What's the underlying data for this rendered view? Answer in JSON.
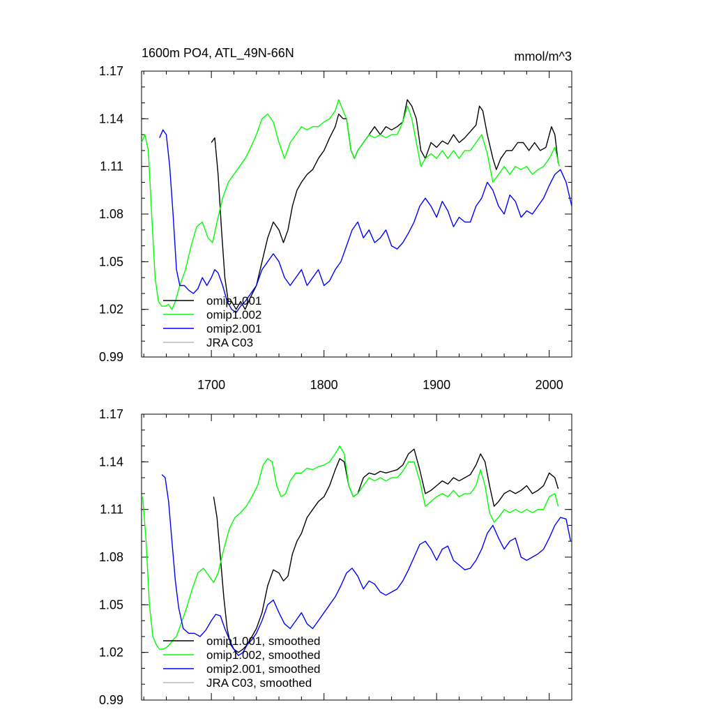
{
  "chart_data": [
    {
      "type": "line",
      "title": "1600m PO4, ATL_49N-66N",
      "units": "mmol/m^3",
      "xlim": [
        1638,
        2020
      ],
      "ylim": [
        0.99,
        1.17
      ],
      "yticks": [
        "1.17",
        "1.14",
        "1.11",
        "1.08",
        "1.05",
        "1.02",
        "0.99"
      ],
      "xticks": [
        "1700",
        "1800",
        "1900",
        "2000"
      ],
      "legend_position": "bottom-left",
      "series": [
        {
          "name": "omip1.001",
          "color": "#000000",
          "x": [
            1700,
            1703,
            1706,
            1709,
            1712,
            1715,
            1718,
            1722,
            1726,
            1730,
            1735,
            1740,
            1745,
            1750,
            1755,
            1760,
            1764,
            1768,
            1772,
            1776,
            1780,
            1785,
            1790,
            1795,
            1800,
            1805,
            1810,
            1813,
            1817,
            1820,
            1824,
            1827,
            1830,
            1835,
            1840,
            1845,
            1850,
            1855,
            1860,
            1865,
            1870,
            1874,
            1878,
            1882,
            1886,
            1890,
            1895,
            1900,
            1905,
            1910,
            1915,
            1920,
            1925,
            1930,
            1935,
            1938,
            1941,
            1945,
            1950,
            1953,
            1957,
            1962,
            1967,
            1972,
            1977,
            1982,
            1987,
            1992,
            1997,
            2002,
            2005,
            2008
          ],
          "y": [
            1.125,
            1.128,
            1.105,
            1.07,
            1.04,
            1.025,
            1.025,
            1.02,
            1.025,
            1.02,
            1.028,
            1.035,
            1.05,
            1.065,
            1.075,
            1.07,
            1.062,
            1.07,
            1.085,
            1.095,
            1.1,
            1.105,
            1.108,
            1.115,
            1.12,
            1.128,
            1.135,
            1.143,
            1.14,
            1.14,
            1.12,
            1.115,
            1.12,
            1.125,
            1.13,
            1.135,
            1.13,
            1.135,
            1.133,
            1.135,
            1.138,
            1.152,
            1.148,
            1.14,
            1.12,
            1.115,
            1.125,
            1.122,
            1.126,
            1.124,
            1.13,
            1.125,
            1.128,
            1.132,
            1.136,
            1.148,
            1.145,
            1.13,
            1.115,
            1.108,
            1.115,
            1.12,
            1.12,
            1.125,
            1.125,
            1.12,
            1.125,
            1.12,
            1.122,
            1.135,
            1.13,
            1.112
          ]
        },
        {
          "name": "omip1.002",
          "color": "#00ff00",
          "x": [
            1638,
            1641,
            1644,
            1647,
            1650,
            1653,
            1656,
            1659,
            1662,
            1665,
            1668,
            1672,
            1677,
            1682,
            1687,
            1692,
            1697,
            1701,
            1705,
            1710,
            1715,
            1720,
            1725,
            1730,
            1735,
            1740,
            1745,
            1750,
            1755,
            1760,
            1765,
            1770,
            1775,
            1780,
            1785,
            1790,
            1795,
            1800,
            1805,
            1810,
            1813,
            1817,
            1820,
            1824,
            1827,
            1830,
            1835,
            1840,
            1845,
            1850,
            1855,
            1860,
            1865,
            1870,
            1874,
            1878,
            1882,
            1886,
            1890,
            1895,
            1900,
            1905,
            1910,
            1915,
            1920,
            1925,
            1930,
            1935,
            1940,
            1945,
            1950,
            1955,
            1960,
            1965,
            1970,
            1975,
            1980,
            1985,
            1990,
            1995,
            2000,
            2005,
            2009
          ],
          "y": [
            1.125,
            1.13,
            1.12,
            1.08,
            1.04,
            1.025,
            1.022,
            1.022,
            1.023,
            1.02,
            1.025,
            1.035,
            1.045,
            1.06,
            1.072,
            1.075,
            1.065,
            1.062,
            1.075,
            1.09,
            1.1,
            1.105,
            1.11,
            1.115,
            1.122,
            1.13,
            1.14,
            1.143,
            1.138,
            1.125,
            1.115,
            1.125,
            1.13,
            1.135,
            1.133,
            1.135,
            1.135,
            1.138,
            1.14,
            1.145,
            1.152,
            1.145,
            1.14,
            1.12,
            1.115,
            1.12,
            1.125,
            1.13,
            1.128,
            1.13,
            1.128,
            1.13,
            1.13,
            1.138,
            1.148,
            1.14,
            1.125,
            1.11,
            1.115,
            1.118,
            1.115,
            1.12,
            1.115,
            1.12,
            1.115,
            1.12,
            1.12,
            1.125,
            1.13,
            1.118,
            1.1,
            1.105,
            1.11,
            1.105,
            1.11,
            1.108,
            1.11,
            1.105,
            1.108,
            1.11,
            1.115,
            1.122,
            1.11
          ]
        },
        {
          "name": "omip2.001",
          "color": "#0000ff",
          "x": [
            1654,
            1657,
            1660,
            1663,
            1666,
            1669,
            1672,
            1676,
            1680,
            1684,
            1688,
            1692,
            1696,
            1700,
            1703,
            1706,
            1710,
            1714,
            1718,
            1722,
            1726,
            1730,
            1735,
            1740,
            1745,
            1750,
            1755,
            1760,
            1765,
            1770,
            1775,
            1780,
            1785,
            1790,
            1795,
            1800,
            1805,
            1810,
            1815,
            1820,
            1825,
            1830,
            1835,
            1840,
            1845,
            1850,
            1855,
            1860,
            1865,
            1870,
            1875,
            1880,
            1885,
            1890,
            1895,
            1900,
            1905,
            1910,
            1915,
            1920,
            1925,
            1930,
            1935,
            1940,
            1945,
            1950,
            1955,
            1960,
            1965,
            1970,
            1975,
            1980,
            1985,
            1990,
            1995,
            2000,
            2005,
            2010,
            2015,
            2020
          ],
          "y": [
            1.128,
            1.133,
            1.13,
            1.11,
            1.08,
            1.045,
            1.035,
            1.035,
            1.032,
            1.03,
            1.033,
            1.04,
            1.035,
            1.04,
            1.045,
            1.043,
            1.035,
            1.025,
            1.02,
            1.018,
            1.022,
            1.025,
            1.03,
            1.035,
            1.045,
            1.05,
            1.055,
            1.05,
            1.04,
            1.035,
            1.04,
            1.045,
            1.035,
            1.04,
            1.045,
            1.035,
            1.038,
            1.045,
            1.05,
            1.06,
            1.07,
            1.075,
            1.065,
            1.07,
            1.062,
            1.065,
            1.07,
            1.06,
            1.058,
            1.062,
            1.068,
            1.075,
            1.085,
            1.09,
            1.085,
            1.078,
            1.088,
            1.082,
            1.072,
            1.078,
            1.075,
            1.075,
            1.085,
            1.09,
            1.1,
            1.095,
            1.085,
            1.08,
            1.092,
            1.088,
            1.078,
            1.082,
            1.08,
            1.085,
            1.09,
            1.098,
            1.105,
            1.108,
            1.1,
            1.085
          ]
        },
        {
          "name": "JRA C03",
          "color": "#bbbbbb",
          "x": [],
          "y": []
        }
      ]
    },
    {
      "type": "line",
      "title": "",
      "units": "",
      "xlim": [
        1638,
        2020
      ],
      "ylim": [
        0.99,
        1.17
      ],
      "yticks": [
        "1.17",
        "1.14",
        "1.11",
        "1.08",
        "1.05",
        "1.02",
        "0.99"
      ],
      "xticks": [],
      "legend_position": "bottom-left",
      "series": [
        {
          "name": "omip1.001, smoothed",
          "color": "#000000",
          "x": [
            1702,
            1705,
            1708,
            1711,
            1714,
            1717,
            1720,
            1724,
            1728,
            1732,
            1736,
            1740,
            1745,
            1750,
            1755,
            1760,
            1764,
            1768,
            1772,
            1776,
            1780,
            1785,
            1790,
            1795,
            1800,
            1805,
            1810,
            1814,
            1818,
            1822,
            1826,
            1830,
            1835,
            1840,
            1845,
            1850,
            1855,
            1860,
            1865,
            1870,
            1875,
            1880,
            1885,
            1890,
            1895,
            1900,
            1905,
            1910,
            1915,
            1920,
            1925,
            1930,
            1935,
            1939,
            1943,
            1947,
            1951,
            1955,
            1960,
            1965,
            1970,
            1975,
            1980,
            1985,
            1990,
            1995,
            2000,
            2005,
            2008
          ],
          "y": [
            1.118,
            1.105,
            1.08,
            1.055,
            1.035,
            1.025,
            1.022,
            1.02,
            1.022,
            1.025,
            1.03,
            1.035,
            1.045,
            1.062,
            1.072,
            1.07,
            1.065,
            1.068,
            1.082,
            1.09,
            1.095,
            1.105,
            1.11,
            1.115,
            1.118,
            1.125,
            1.135,
            1.142,
            1.14,
            1.125,
            1.118,
            1.12,
            1.13,
            1.133,
            1.132,
            1.134,
            1.133,
            1.134,
            1.135,
            1.138,
            1.145,
            1.148,
            1.135,
            1.12,
            1.122,
            1.125,
            1.128,
            1.126,
            1.13,
            1.128,
            1.13,
            1.132,
            1.138,
            1.145,
            1.14,
            1.125,
            1.112,
            1.115,
            1.12,
            1.122,
            1.12,
            1.122,
            1.125,
            1.12,
            1.122,
            1.125,
            1.133,
            1.13,
            1.123
          ]
        },
        {
          "name": "omip1.002, smoothed",
          "color": "#00ff00",
          "x": [
            1639,
            1642,
            1645,
            1648,
            1651,
            1654,
            1657,
            1660,
            1663,
            1666,
            1669,
            1673,
            1678,
            1683,
            1688,
            1693,
            1698,
            1702,
            1706,
            1711,
            1716,
            1721,
            1726,
            1731,
            1736,
            1741,
            1746,
            1750,
            1754,
            1758,
            1762,
            1766,
            1770,
            1775,
            1780,
            1785,
            1790,
            1795,
            1800,
            1805,
            1810,
            1814,
            1818,
            1822,
            1826,
            1830,
            1835,
            1840,
            1845,
            1850,
            1855,
            1860,
            1865,
            1870,
            1875,
            1880,
            1885,
            1890,
            1895,
            1900,
            1905,
            1910,
            1915,
            1920,
            1925,
            1930,
            1935,
            1939,
            1943,
            1947,
            1951,
            1955,
            1960,
            1965,
            1970,
            1975,
            1980,
            1985,
            1990,
            1995,
            2000,
            2005,
            2008
          ],
          "y": [
            1.118,
            1.09,
            1.05,
            1.03,
            1.025,
            1.022,
            1.022,
            1.023,
            1.025,
            1.028,
            1.03,
            1.038,
            1.048,
            1.06,
            1.07,
            1.073,
            1.068,
            1.064,
            1.07,
            1.085,
            1.098,
            1.105,
            1.108,
            1.112,
            1.118,
            1.125,
            1.138,
            1.142,
            1.14,
            1.125,
            1.118,
            1.12,
            1.128,
            1.133,
            1.133,
            1.136,
            1.135,
            1.137,
            1.138,
            1.14,
            1.145,
            1.15,
            1.145,
            1.125,
            1.118,
            1.12,
            1.125,
            1.13,
            1.128,
            1.13,
            1.128,
            1.13,
            1.13,
            1.134,
            1.14,
            1.14,
            1.128,
            1.112,
            1.115,
            1.118,
            1.12,
            1.118,
            1.122,
            1.118,
            1.12,
            1.12,
            1.125,
            1.135,
            1.125,
            1.108,
            1.102,
            1.105,
            1.11,
            1.108,
            1.11,
            1.108,
            1.11,
            1.108,
            1.11,
            1.11,
            1.118,
            1.12,
            1.112
          ]
        },
        {
          "name": "omip2.001, smoothed",
          "color": "#0000ff",
          "x": [
            1656,
            1659,
            1662,
            1665,
            1668,
            1671,
            1675,
            1680,
            1685,
            1690,
            1695,
            1700,
            1704,
            1708,
            1712,
            1716,
            1720,
            1724,
            1728,
            1732,
            1736,
            1740,
            1745,
            1750,
            1755,
            1760,
            1765,
            1770,
            1775,
            1780,
            1785,
            1790,
            1795,
            1800,
            1805,
            1810,
            1815,
            1820,
            1825,
            1830,
            1835,
            1840,
            1845,
            1850,
            1855,
            1860,
            1865,
            1870,
            1875,
            1880,
            1885,
            1890,
            1895,
            1900,
            1905,
            1910,
            1915,
            1920,
            1925,
            1930,
            1935,
            1940,
            1945,
            1950,
            1955,
            1960,
            1965,
            1970,
            1975,
            1980,
            1985,
            1990,
            1995,
            2000,
            2005,
            2010,
            2015,
            2019
          ],
          "y": [
            1.132,
            1.13,
            1.115,
            1.09,
            1.065,
            1.048,
            1.035,
            1.032,
            1.032,
            1.03,
            1.034,
            1.04,
            1.044,
            1.043,
            1.035,
            1.028,
            1.022,
            1.018,
            1.02,
            1.025,
            1.028,
            1.032,
            1.04,
            1.05,
            1.053,
            1.045,
            1.038,
            1.035,
            1.04,
            1.045,
            1.038,
            1.035,
            1.04,
            1.045,
            1.05,
            1.055,
            1.062,
            1.07,
            1.073,
            1.068,
            1.06,
            1.065,
            1.063,
            1.058,
            1.056,
            1.058,
            1.06,
            1.065,
            1.072,
            1.08,
            1.088,
            1.09,
            1.085,
            1.078,
            1.085,
            1.087,
            1.078,
            1.075,
            1.072,
            1.073,
            1.078,
            1.085,
            1.095,
            1.1,
            1.092,
            1.085,
            1.09,
            1.092,
            1.08,
            1.078,
            1.08,
            1.082,
            1.085,
            1.092,
            1.1,
            1.105,
            1.104,
            1.09
          ]
        },
        {
          "name": "JRA C03, smoothed",
          "color": "#bbbbbb",
          "x": [],
          "y": []
        }
      ]
    }
  ]
}
